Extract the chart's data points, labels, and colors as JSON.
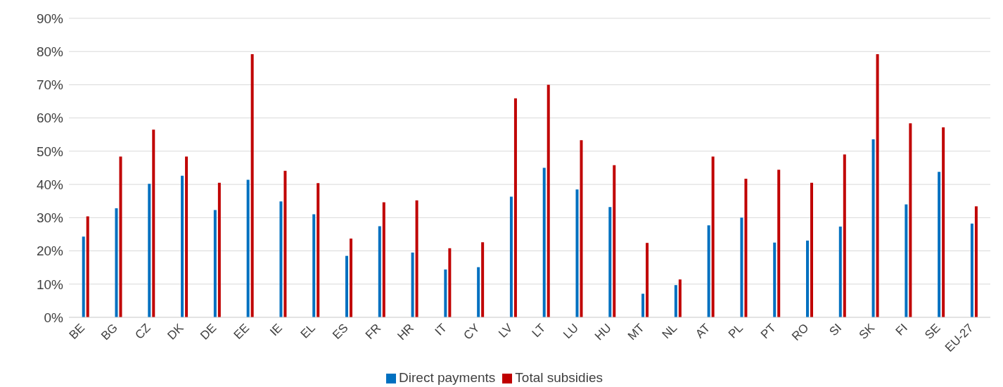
{
  "chart_data": {
    "type": "bar",
    "categories": [
      "BE",
      "BG",
      "CZ",
      "DK",
      "DE",
      "EE",
      "IE",
      "EL",
      "ES",
      "FR",
      "HR",
      "IT",
      "CY",
      "LV",
      "LT",
      "LU",
      "HU",
      "MT",
      "NL",
      "AT",
      "PL",
      "PT",
      "RO",
      "SI",
      "SK",
      "FI",
      "SE",
      "EU-27"
    ],
    "series": [
      {
        "name": "Direct payments",
        "color": "#0070c0",
        "values": [
          24.3,
          32.8,
          40.2,
          42.6,
          32.3,
          41.4,
          34.9,
          31,
          18.5,
          27.4,
          19.5,
          14.4,
          15.1,
          36.3,
          45,
          38.5,
          33.2,
          7.1,
          9.7,
          27.7,
          30,
          22.5,
          23.1,
          27.3,
          53.6,
          34,
          43.8,
          28.2
        ]
      },
      {
        "name": "Total subsidies",
        "color": "#c00000",
        "values": [
          30.4,
          48.4,
          56.5,
          48.4,
          40.5,
          79.2,
          44.1,
          40.4,
          23.7,
          34.6,
          35.2,
          20.8,
          22.6,
          65.9,
          70,
          53.3,
          45.8,
          22.4,
          11.4,
          48.4,
          41.7,
          44.4,
          40.5,
          49,
          79.2,
          58.4,
          57.2,
          33.4
        ]
      }
    ],
    "ylim": [
      0,
      90
    ],
    "yticks": [
      {
        "value": 0,
        "label": "0%"
      },
      {
        "value": 10,
        "label": "10%"
      },
      {
        "value": 20,
        "label": "20%"
      },
      {
        "value": 30,
        "label": "30%"
      },
      {
        "value": 40,
        "label": "40%"
      },
      {
        "value": 50,
        "label": "50%"
      },
      {
        "value": 60,
        "label": "60%"
      },
      {
        "value": 70,
        "label": "70%"
      },
      {
        "value": 80,
        "label": "80%"
      },
      {
        "value": 90,
        "label": "90%"
      }
    ],
    "grid": "y",
    "legend": "bottom"
  }
}
